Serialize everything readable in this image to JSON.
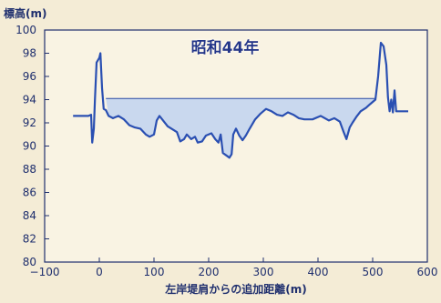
{
  "chart_data": {
    "type": "line",
    "title": "昭和44年",
    "ylabel": "標高(m)",
    "xlabel": "左岸堤肩からの追加距離(m)",
    "xlim": [
      -100,
      600
    ],
    "ylim": [
      80,
      100
    ],
    "x_ticks": [
      -100,
      0,
      100,
      200,
      300,
      400,
      500,
      600
    ],
    "y_ticks": [
      80,
      82,
      84,
      86,
      88,
      90,
      92,
      94,
      96,
      98,
      100
    ],
    "x_tick_labels": [
      "−100",
      "0",
      "100",
      "200",
      "300",
      "400",
      "500",
      "600"
    ],
    "y_tick_labels": [
      "80",
      "82",
      "84",
      "86",
      "88",
      "90",
      "92",
      "94",
      "96",
      "98",
      "100"
    ],
    "water_level": 94.1,
    "water_range": [
      12,
      505
    ],
    "series": [
      {
        "values": [
          [
            -48,
            92.6
          ],
          [
            -20,
            92.6
          ],
          [
            -15,
            92.7
          ],
          [
            -13,
            90.3
          ],
          [
            -10,
            91.5
          ],
          [
            -8,
            94.0
          ],
          [
            -5,
            97.2
          ],
          [
            0,
            97.6
          ],
          [
            2,
            98.0
          ],
          [
            5,
            95.0
          ],
          [
            8,
            93.2
          ],
          [
            12,
            93.1
          ],
          [
            17,
            92.6
          ],
          [
            25,
            92.4
          ],
          [
            35,
            92.6
          ],
          [
            45,
            92.3
          ],
          [
            55,
            91.8
          ],
          [
            65,
            91.6
          ],
          [
            75,
            91.5
          ],
          [
            85,
            91.0
          ],
          [
            92,
            90.8
          ],
          [
            100,
            91.0
          ],
          [
            105,
            92.2
          ],
          [
            110,
            92.6
          ],
          [
            115,
            92.3
          ],
          [
            125,
            91.7
          ],
          [
            135,
            91.4
          ],
          [
            142,
            91.2
          ],
          [
            148,
            90.4
          ],
          [
            155,
            90.6
          ],
          [
            160,
            91.0
          ],
          [
            168,
            90.6
          ],
          [
            175,
            90.8
          ],
          [
            180,
            90.3
          ],
          [
            188,
            90.4
          ],
          [
            195,
            90.9
          ],
          [
            205,
            91.1
          ],
          [
            212,
            90.6
          ],
          [
            218,
            90.3
          ],
          [
            222,
            91.0
          ],
          [
            226,
            89.4
          ],
          [
            232,
            89.2
          ],
          [
            238,
            89.0
          ],
          [
            242,
            89.3
          ],
          [
            245,
            91.0
          ],
          [
            250,
            91.5
          ],
          [
            256,
            90.9
          ],
          [
            262,
            90.5
          ],
          [
            268,
            90.9
          ],
          [
            275,
            91.5
          ],
          [
            285,
            92.3
          ],
          [
            295,
            92.8
          ],
          [
            305,
            93.2
          ],
          [
            315,
            93.0
          ],
          [
            325,
            92.7
          ],
          [
            335,
            92.6
          ],
          [
            345,
            92.9
          ],
          [
            355,
            92.7
          ],
          [
            365,
            92.4
          ],
          [
            375,
            92.3
          ],
          [
            390,
            92.3
          ],
          [
            405,
            92.6
          ],
          [
            420,
            92.2
          ],
          [
            430,
            92.4
          ],
          [
            440,
            92.1
          ],
          [
            447,
            91.2
          ],
          [
            452,
            90.6
          ],
          [
            458,
            91.6
          ],
          [
            463,
            92.0
          ],
          [
            470,
            92.5
          ],
          [
            478,
            93.0
          ],
          [
            488,
            93.3
          ],
          [
            495,
            93.6
          ],
          [
            505,
            94.0
          ],
          [
            510,
            96.0
          ],
          [
            515,
            98.9
          ],
          [
            520,
            98.6
          ],
          [
            525,
            97.0
          ],
          [
            528,
            94.2
          ],
          [
            531,
            93.0
          ],
          [
            534,
            94.0
          ],
          [
            537,
            92.9
          ],
          [
            540,
            94.8
          ],
          [
            543,
            93.0
          ],
          [
            550,
            93.0
          ],
          [
            565,
            93.0
          ]
        ]
      }
    ]
  }
}
